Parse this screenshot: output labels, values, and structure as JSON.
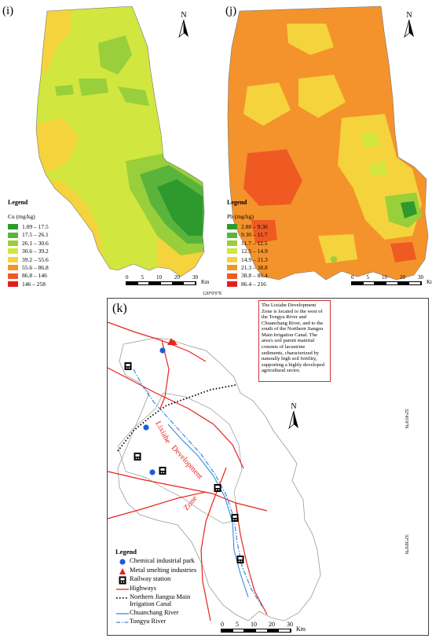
{
  "panel_i": {
    "label": "(i)",
    "legend_title": "Legend",
    "unit": "Cu (mg/kg)",
    "classes": [
      {
        "range": "1.09 – 17.5",
        "color": "#2e9a2e"
      },
      {
        "range": "17.5 – 26.1",
        "color": "#5ab43c"
      },
      {
        "range": "26.1 – 30.6",
        "color": "#98cf3a"
      },
      {
        "range": "30.6 – 39.2",
        "color": "#d2e640"
      },
      {
        "range": "39.2 – 55.6",
        "color": "#f5d33c"
      },
      {
        "range": "55.6 – 86.8",
        "color": "#f4932c"
      },
      {
        "range": "86.8 – 146",
        "color": "#ef5a23"
      },
      {
        "range": "146 – 258",
        "color": "#e31e1e"
      }
    ],
    "north": "N",
    "scale_numbers": [
      "0",
      "5",
      "10",
      "20",
      "30"
    ],
    "scale_unit": "Km"
  },
  "panel_j": {
    "label": "(j)",
    "legend_title": "Legend",
    "unit": "Pb (mg/kg)",
    "classes": [
      {
        "range": "2.88 – 9.30",
        "color": "#2e9a2e"
      },
      {
        "range": "9.30 – 11.7",
        "color": "#5ab43c"
      },
      {
        "range": "11.7 – 12.5",
        "color": "#98cf3a"
      },
      {
        "range": "12.5 – 14.9",
        "color": "#d2e640"
      },
      {
        "range": "14.9 – 21.3",
        "color": "#f5d33c"
      },
      {
        "range": "21.3 – 38.8",
        "color": "#f4932c"
      },
      {
        "range": "38.8 – 86.4",
        "color": "#ef5a23"
      },
      {
        "range": "86.4 – 216",
        "color": "#e31e1e"
      }
    ],
    "north": "N",
    "scale_numbers": [
      "0",
      "5",
      "10",
      "20",
      "30"
    ],
    "scale_unit": "Km"
  },
  "panel_k": {
    "label": "(k)",
    "top_coord": "120°0'0\"E",
    "right_coord_1": "32°45'0\"N",
    "right_coord_2": "32°30'0\"N",
    "info_text": "The Lixiahe Development Zone is located to the west of the Tongyu River and Chuanchang River, and to the south of the Northern Jiangsu Main Irrigation Canal. The area's soil parent material consists of lacustrine sediments, characterized by naturally high soil fertility, supporting a highly developed agricultural sector.",
    "zone_words": [
      "Lixiahe",
      "Development",
      "Zone"
    ],
    "north": "N",
    "scale_numbers": [
      "0",
      "5",
      "10",
      "20",
      "30"
    ],
    "scale_unit": "Km",
    "legend_title": "Legend",
    "legend_items": [
      {
        "label": "Chemical industrial park",
        "symbol": "blue-dot"
      },
      {
        "label": "Metal smelting industries",
        "symbol": "red-triangle"
      },
      {
        "label": "Railway station",
        "symbol": "rail-icon"
      },
      {
        "label": "Highways",
        "symbol": "red-line"
      },
      {
        "label": "Northern Jiangsu Main Irrigation Canal",
        "symbol": "dotted-line"
      },
      {
        "label": "Chuanchang River",
        "symbol": "blue-line"
      },
      {
        "label": "Tongyu River",
        "symbol": "dashdot-line"
      }
    ],
    "colors": {
      "highway": "#e8231c",
      "river": "#3a8ad6",
      "park": "#1d5bd8",
      "smelting": "#e8231c",
      "boundary": "#999999"
    }
  }
}
